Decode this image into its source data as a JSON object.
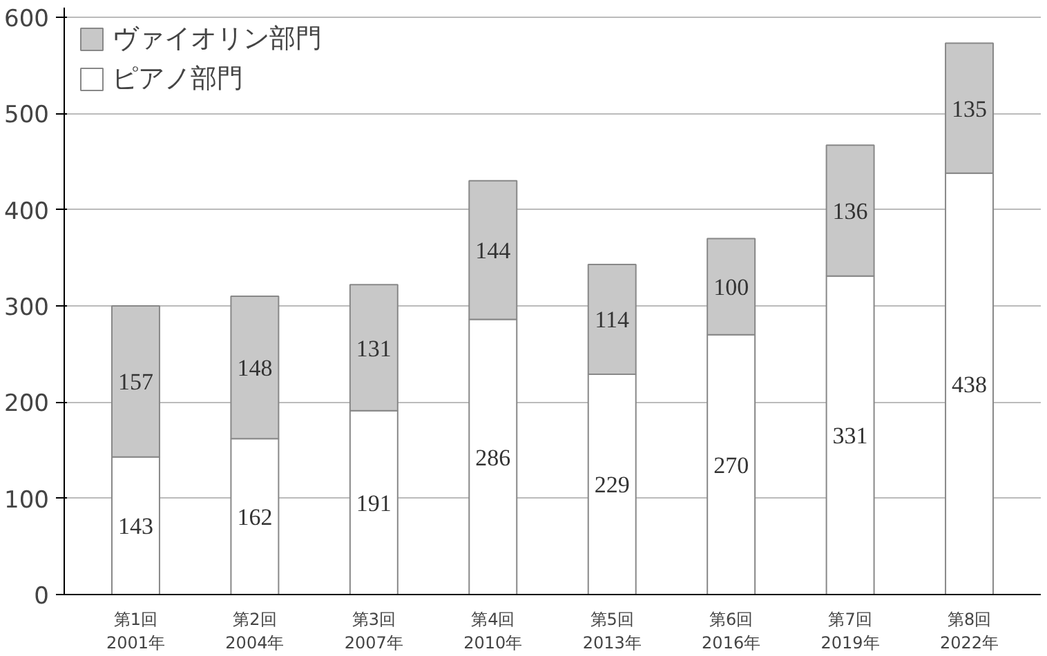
{
  "chart_data": {
    "type": "bar",
    "stacked": true,
    "categories": [
      "第1回\n2001年",
      "第2回\n2004年",
      "第3回\n2007年",
      "第4回\n2010年",
      "第5回\n2013年",
      "第6回\n2016年",
      "第7回\n2019年",
      "第8回\n2022年"
    ],
    "series": [
      {
        "name": "ピアノ部門",
        "color": "#ffffff",
        "values": [
          143,
          162,
          191,
          286,
          229,
          270,
          331,
          438
        ]
      },
      {
        "name": "ヴァイオリン部門",
        "color": "#c8c8c8",
        "values": [
          157,
          148,
          131,
          144,
          114,
          100,
          136,
          135
        ]
      }
    ],
    "ylim": [
      0,
      610
    ],
    "yticks": [
      0,
      100,
      200,
      300,
      400,
      500,
      600
    ],
    "grid": "y",
    "legend": "top left",
    "data_labels": true
  }
}
